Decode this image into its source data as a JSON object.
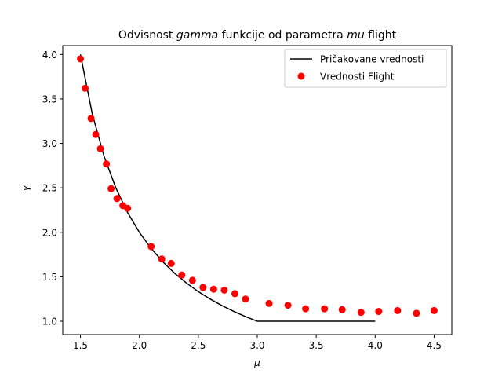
{
  "chart_data": {
    "type": "line",
    "title_parts": [
      "Odvisnost ",
      "gamma",
      " funkcije od parametra ",
      "mu",
      " flight"
    ],
    "xlabel": "μ",
    "ylabel": "γ",
    "xlim": [
      1.35,
      4.65
    ],
    "ylim": [
      0.85,
      4.1
    ],
    "xticks": [
      1.5,
      2.0,
      2.5,
      3.0,
      3.5,
      4.0,
      4.5
    ],
    "xtick_labels": [
      "1.5",
      "2.0",
      "2.5",
      "3.0",
      "3.5",
      "4.0",
      "4.5"
    ],
    "yticks": [
      1.0,
      1.5,
      2.0,
      2.5,
      3.0,
      3.5,
      4.0
    ],
    "ytick_labels": [
      "1.0",
      "1.5",
      "2.0",
      "2.5",
      "3.0",
      "3.5",
      "4.0"
    ],
    "grid": false,
    "legend_position": "top-right",
    "series": [
      {
        "name": "Pričakovane vrednosti",
        "kind": "line",
        "color": "#000000",
        "x": [
          1.5,
          1.6,
          1.7,
          1.8,
          1.9,
          2.0,
          2.1,
          2.2,
          2.3,
          2.4,
          2.5,
          2.6,
          2.7,
          2.8,
          2.9,
          3.0,
          3.5,
          4.0
        ],
        "y": [
          4.0,
          3.333,
          2.857,
          2.5,
          2.222,
          2.0,
          1.818,
          1.667,
          1.538,
          1.429,
          1.333,
          1.25,
          1.176,
          1.111,
          1.053,
          1.0,
          1.0,
          1.0
        ]
      },
      {
        "name": "Vrednosti Flight",
        "kind": "scatter",
        "color": "#ff0000",
        "x": [
          1.5,
          1.54,
          1.59,
          1.63,
          1.67,
          1.72,
          1.76,
          1.81,
          1.86,
          1.9,
          2.1,
          2.19,
          2.27,
          2.36,
          2.45,
          2.54,
          2.63,
          2.72,
          2.81,
          2.9,
          3.1,
          3.26,
          3.41,
          3.57,
          3.72,
          3.88,
          4.03,
          4.19,
          4.35,
          4.5
        ],
        "y": [
          3.95,
          3.62,
          3.28,
          3.1,
          2.94,
          2.77,
          2.49,
          2.38,
          2.3,
          2.27,
          1.84,
          1.7,
          1.65,
          1.52,
          1.46,
          1.38,
          1.36,
          1.35,
          1.31,
          1.25,
          1.2,
          1.18,
          1.14,
          1.14,
          1.13,
          1.1,
          1.11,
          1.12,
          1.09,
          1.12
        ]
      }
    ]
  }
}
